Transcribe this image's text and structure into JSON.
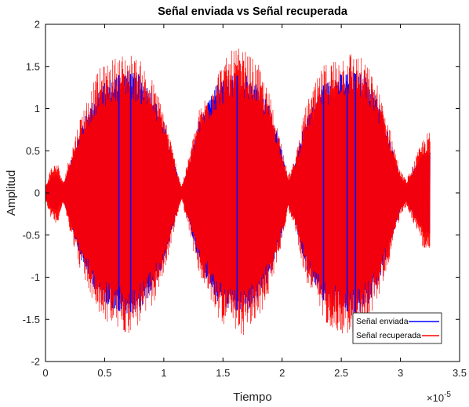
{
  "chart_data": {
    "type": "line",
    "title": "Señal enviada vs Señal recuperada",
    "xlabel": "Tiempo",
    "ylabel": "Amplitud",
    "x_exponent_label": "×10",
    "x_exponent": "-5",
    "xlim": [
      0,
      3.5
    ],
    "ylim": [
      -2,
      2
    ],
    "x_ticks": [
      0,
      0.5,
      1,
      1.5,
      2,
      2.5,
      3,
      3.5
    ],
    "x_tick_labels": [
      "0",
      "0.5",
      "1",
      "1.5",
      "2",
      "2.5",
      "3",
      "3.5"
    ],
    "y_ticks": [
      -2,
      -1.5,
      -1,
      -0.5,
      0,
      0.5,
      1,
      1.5,
      2
    ],
    "y_tick_labels": [
      "-2",
      "-1.5",
      "-1",
      "-0.5",
      "0",
      "0.5",
      "1",
      "1.5",
      "2"
    ],
    "grid": false,
    "legend_position": "bottom-right",
    "series": [
      {
        "name": "Señal enviada",
        "color": "#0000ff",
        "x_end": 3.25,
        "envelope": {
          "x": [
            0,
            0.05,
            0.1,
            0.15,
            0.2,
            0.3,
            0.45,
            0.6,
            0.7,
            0.8,
            0.9,
            1.0,
            1.1,
            1.15,
            1.2,
            1.3,
            1.45,
            1.6,
            1.7,
            1.8,
            1.9,
            2.0,
            2.05,
            2.1,
            2.2,
            2.35,
            2.5,
            2.6,
            2.7,
            2.8,
            2.9,
            3.0,
            3.05,
            3.1,
            3.2,
            3.25
          ],
          "y": [
            0.05,
            0.2,
            0.22,
            0.1,
            0.3,
            0.8,
            1.25,
            1.42,
            1.45,
            1.4,
            1.2,
            0.85,
            0.3,
            0.05,
            0.3,
            0.85,
            1.3,
            1.42,
            1.42,
            1.3,
            1.0,
            0.5,
            0.15,
            0.3,
            0.9,
            1.3,
            1.42,
            1.45,
            1.4,
            1.15,
            0.7,
            0.2,
            0.1,
            0.25,
            0.5,
            0.5
          ]
        }
      },
      {
        "name": "Señal recuperada",
        "color": "#ff0000",
        "x_end": 3.25,
        "envelope": {
          "x": [
            0,
            0.05,
            0.1,
            0.15,
            0.2,
            0.3,
            0.45,
            0.6,
            0.7,
            0.8,
            0.9,
            1.0,
            1.1,
            1.15,
            1.2,
            1.3,
            1.45,
            1.6,
            1.7,
            1.8,
            1.9,
            2.0,
            2.05,
            2.1,
            2.2,
            2.35,
            2.5,
            2.6,
            2.7,
            2.8,
            2.9,
            3.0,
            3.05,
            3.1,
            3.2,
            3.25
          ],
          "y": [
            0.08,
            0.3,
            0.35,
            0.12,
            0.4,
            0.9,
            1.4,
            1.55,
            1.6,
            1.5,
            1.3,
            0.95,
            0.35,
            0.08,
            0.35,
            0.95,
            1.4,
            1.65,
            1.6,
            1.45,
            1.1,
            0.55,
            0.2,
            0.35,
            1.0,
            1.45,
            1.6,
            1.62,
            1.5,
            1.25,
            0.8,
            0.25,
            0.15,
            0.3,
            0.65,
            0.7
          ]
        }
      }
    ]
  }
}
